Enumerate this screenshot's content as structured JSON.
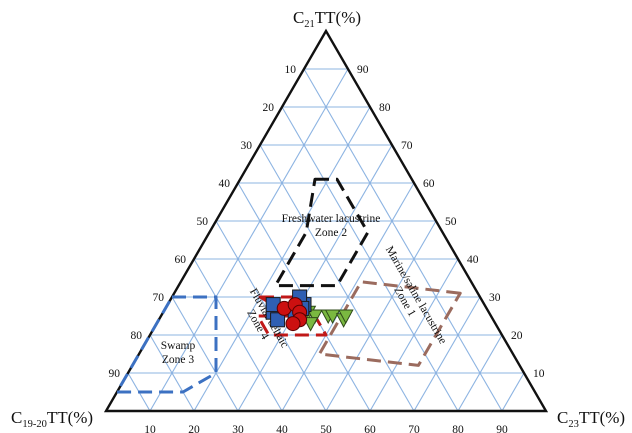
{
  "chart_data": {
    "type": "ternary-scatter",
    "axes": {
      "top": {
        "main": "C",
        "sub": "21",
        "rest": "TT(%)"
      },
      "left": {
        "main": "C",
        "sub": "19-20",
        "rest": "TT(%)"
      },
      "right": {
        "main": "C",
        "sub": "23",
        "rest": "TT(%)"
      }
    },
    "ticks": [
      10,
      20,
      30,
      40,
      50,
      60,
      70,
      80,
      90
    ],
    "grid": true,
    "colors": {
      "frame": "#111111",
      "grid": "#8db4e2",
      "zone1": "#9b6b5e",
      "zone2": "#111111",
      "zone3": "#3c71c2",
      "zone4": "#c01818",
      "square": "#2f5fb3",
      "circle": "#cc1010",
      "triangle": "#7ab840"
    },
    "zones": [
      {
        "id": "zone1",
        "lines": [
          "Marine/saline lacustrine",
          "Zone 1"
        ],
        "polygon": [
          [
            31,
            4,
            65
          ],
          [
            34,
            25,
            41
          ],
          [
            15,
            44,
            41
          ],
          [
            12,
            23,
            65
          ]
        ]
      },
      {
        "id": "zone2",
        "lines": [
          "Freshwater lacustrine",
          "Zone 2"
        ],
        "polygon": [
          [
            61,
            22,
            17
          ],
          [
            61,
            17,
            22
          ],
          [
            47,
            17,
            36
          ],
          [
            33,
            31,
            36
          ],
          [
            33,
            45,
            22
          ],
          [
            47,
            31,
            22
          ]
        ]
      },
      {
        "id": "zone3",
        "lines": [
          "Swamp",
          "Zone 3"
        ],
        "polygon": [
          [
            30,
            70,
            0
          ],
          [
            30,
            60,
            10
          ],
          [
            10,
            70,
            20
          ],
          [
            5,
            80,
            15
          ],
          [
            5,
            95,
            0
          ]
        ]
      },
      {
        "id": "zone4",
        "lines": [
          "Fluvial/deltaic",
          "Zone 4"
        ],
        "polygon": [
          [
            30,
            50,
            20
          ],
          [
            30,
            40,
            30
          ],
          [
            20,
            40,
            40
          ],
          [
            20,
            53,
            27
          ],
          [
            25,
            53,
            22
          ],
          [
            25,
            45,
            30
          ]
        ]
      }
    ],
    "series": [
      {
        "marker": "square",
        "points": [
          [
            26,
            49,
            25
          ],
          [
            28,
            48,
            24
          ],
          [
            26,
            44,
            30
          ],
          [
            28,
            41,
            31
          ],
          [
            30,
            41,
            29
          ],
          [
            27,
            42,
            31
          ],
          [
            24,
            49,
            27
          ]
        ]
      },
      {
        "marker": "circle",
        "points": [
          [
            27,
            46,
            27
          ],
          [
            28,
            43,
            29
          ],
          [
            26,
            43,
            31
          ],
          [
            24,
            44,
            32
          ],
          [
            23,
            46,
            31
          ]
        ]
      },
      {
        "marker": "triangle",
        "points": [
          [
            26,
            41,
            33
          ],
          [
            25,
            40,
            35
          ],
          [
            23,
            42,
            35
          ],
          [
            25,
            37,
            38
          ],
          [
            25,
            36,
            39
          ],
          [
            24,
            34,
            42
          ],
          [
            25,
            33,
            42
          ]
        ]
      }
    ]
  }
}
